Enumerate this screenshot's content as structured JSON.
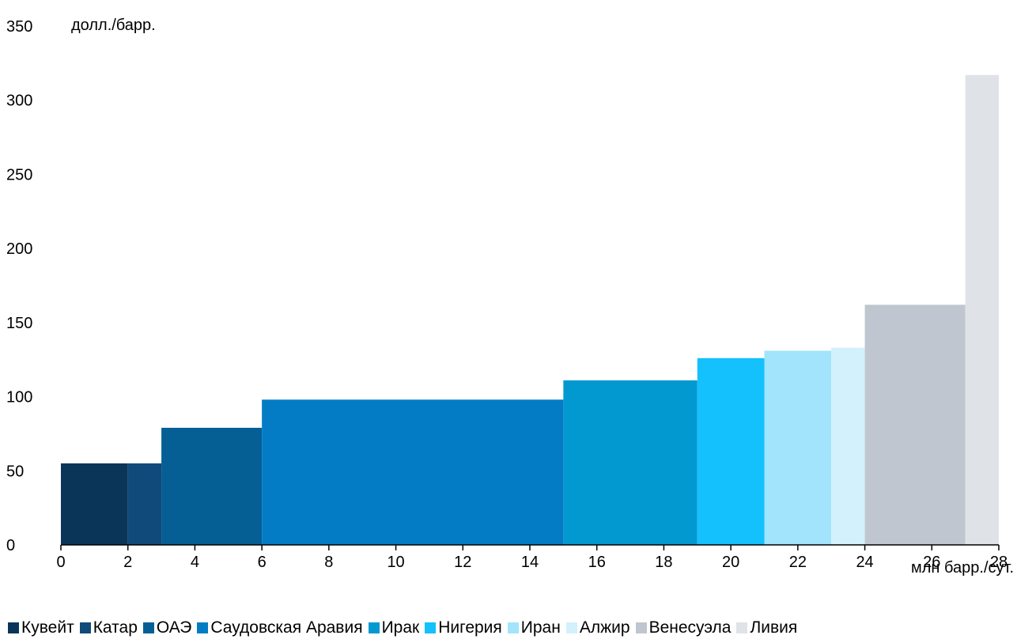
{
  "chart_data": {
    "type": "bar",
    "subtype": "variable-width cost curve",
    "ylabel": "долл./барр.",
    "xlabel": "млн барр./сут.",
    "xlim": [
      0,
      28
    ],
    "ylim": [
      0,
      350
    ],
    "x_ticks": [
      0,
      2,
      4,
      6,
      8,
      10,
      12,
      14,
      16,
      18,
      20,
      22,
      24,
      26,
      28
    ],
    "y_ticks": [
      0,
      50,
      100,
      150,
      200,
      250,
      300,
      350
    ],
    "grid": false,
    "legend_position": "bottom",
    "series": [
      {
        "name": "Кувейт",
        "x_start": 0,
        "x_end": 2,
        "value": 55,
        "color": "#0b3558"
      },
      {
        "name": "Катар",
        "x_start": 2,
        "x_end": 3,
        "value": 55,
        "color": "#104a7a"
      },
      {
        "name": "ОАЭ",
        "x_start": 3,
        "x_end": 6,
        "value": 79,
        "color": "#055f95"
      },
      {
        "name": "Саудовская Аравия",
        "x_start": 6,
        "x_end": 15,
        "value": 98,
        "color": "#037cc5"
      },
      {
        "name": "Ирак",
        "x_start": 15,
        "x_end": 19,
        "value": 111,
        "color": "#0299d0"
      },
      {
        "name": "Нигерия",
        "x_start": 19,
        "x_end": 21,
        "value": 126,
        "color": "#14c1fc"
      },
      {
        "name": "Иран",
        "x_start": 21,
        "x_end": 23,
        "value": 131,
        "color": "#a1e4fb"
      },
      {
        "name": "Алжир",
        "x_start": 23,
        "x_end": 24,
        "value": 133,
        "color": "#d3f1fc"
      },
      {
        "name": "Венесуэла",
        "x_start": 24,
        "x_end": 27,
        "value": 162,
        "color": "#c0c6cf"
      },
      {
        "name": "Ливия",
        "x_start": 27,
        "x_end": 28,
        "value": 317,
        "color": "#dfe2e7"
      }
    ]
  }
}
